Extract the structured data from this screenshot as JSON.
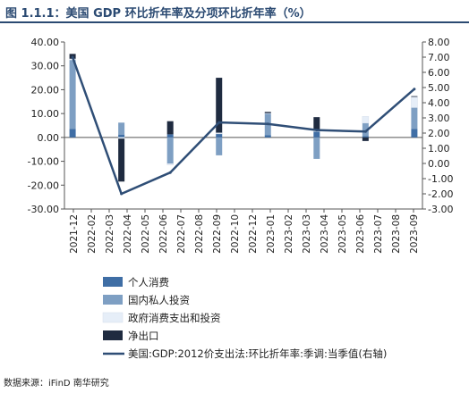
{
  "title": "图 1.1.1：美国 GDP 环比折年率及分项环比折年率（%）",
  "source": "数据来源：iFinD 南华研究",
  "colors": {
    "personal": "#3f6ea5",
    "private": "#7e9fc3",
    "gov": "#e6eef8",
    "netexp": "#1f2b40",
    "line": "#2f4e76"
  },
  "chart_data": {
    "type": "bar",
    "stacked": true,
    "categories": [
      "2021-12",
      "2022-01",
      "2022-02",
      "2022-03",
      "2022-04",
      "2022-05",
      "2022-06",
      "2022-07",
      "2022-08",
      "2022-09",
      "2022-10",
      "2022-11",
      "2022-12",
      "2023-01",
      "2023-02",
      "2023-03",
      "2023-04",
      "2023-05",
      "2023-06",
      "2023-07",
      "2023-08",
      "2023-09"
    ],
    "tick_labels": [
      "2021-12",
      "2022-02",
      "2022-03",
      "2022-04",
      "2022-05",
      "2022-06",
      "2022-07",
      "2022-08",
      "2022-09",
      "2022-10",
      "2022-12",
      "2023-01",
      "2023-02",
      "2023-03",
      "2023-04",
      "2023-05",
      "2023-06",
      "2023-07",
      "2023-08",
      "2023-09"
    ],
    "series": [
      {
        "name": "个人消费",
        "values": [
          3.5,
          null,
          null,
          1.2,
          null,
          null,
          1.3,
          null,
          null,
          1.5,
          null,
          null,
          1.0,
          null,
          null,
          2.5,
          null,
          null,
          0.5,
          null,
          null,
          3.5
        ]
      },
      {
        "name": "国内私人投资",
        "values": [
          29.0,
          null,
          null,
          5.0,
          null,
          null,
          -11.0,
          null,
          null,
          -7.5,
          null,
          null,
          9.0,
          null,
          null,
          -9.0,
          null,
          null,
          5.5,
          null,
          null,
          9.0
        ]
      },
      {
        "name": "政府消费支出和投资",
        "values": [
          0.5,
          null,
          null,
          -0.5,
          null,
          null,
          -0.5,
          null,
          null,
          0.5,
          null,
          null,
          0.2,
          null,
          null,
          1.0,
          null,
          null,
          2.8,
          null,
          null,
          4.5
        ]
      },
      {
        "name": "净出口",
        "values": [
          2.0,
          null,
          null,
          -18.0,
          null,
          null,
          5.5,
          null,
          null,
          23.0,
          null,
          null,
          0.5,
          null,
          null,
          5.0,
          null,
          null,
          -1.5,
          null,
          null,
          0.3
        ]
      },
      {
        "name": "美国:GDP:2012价支出法:环比折年率:季调:当季值(右轴)",
        "type": "line",
        "axis": "right",
        "values": [
          7.0,
          null,
          null,
          -2.0,
          null,
          null,
          -0.6,
          null,
          null,
          2.7,
          null,
          null,
          2.6,
          null,
          null,
          2.2,
          null,
          null,
          2.1,
          null,
          null,
          4.9
        ]
      }
    ],
    "y_left": {
      "min": -30,
      "max": 40,
      "step": 10,
      "tick_labels": [
        "40.00",
        "30.00",
        "20.00",
        "10.00",
        "0.00",
        "-10.00",
        "-20.00",
        "-30.00"
      ]
    },
    "y_right": {
      "min": -3,
      "max": 8,
      "step": 1,
      "tick_labels": [
        "8.00",
        "7.00",
        "6.00",
        "5.00",
        "4.00",
        "3.00",
        "2.00",
        "1.00",
        "0.00",
        "-1.00",
        "-2.00",
        "-3.00"
      ]
    },
    "legend_position": "bottom-left"
  }
}
